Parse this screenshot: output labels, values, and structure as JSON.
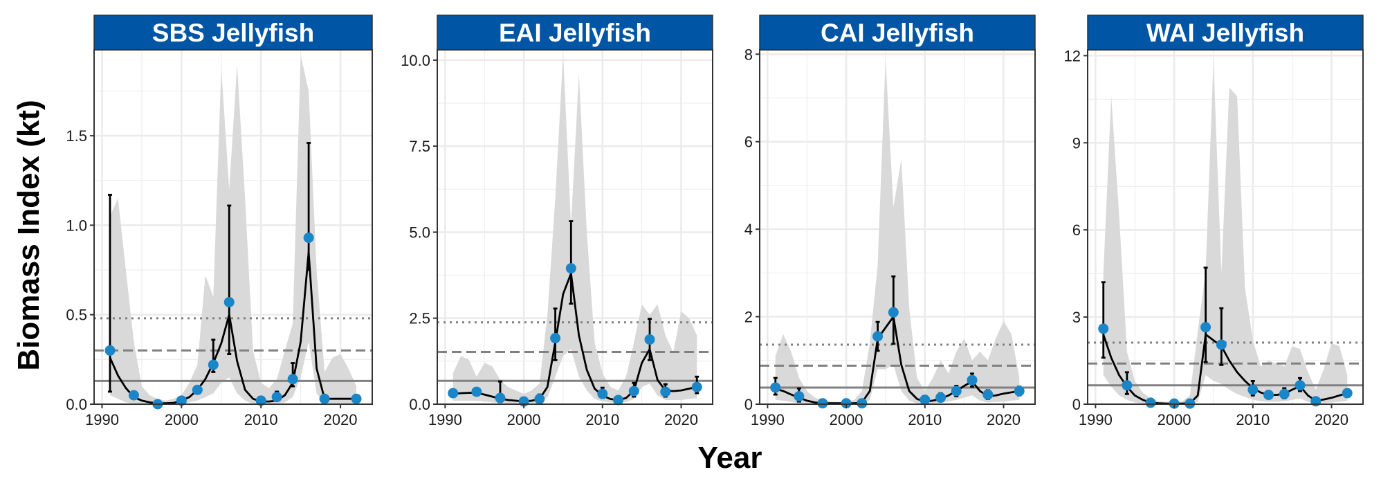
{
  "chart_data": {
    "type": "line",
    "xlabel": "Year",
    "ylabel": "Biomass Index (kt)",
    "grid": true,
    "colors": {
      "strip_bg": "#0155a5",
      "point": "#1a86c8",
      "line": "#000000",
      "ribbon": "#d9d9d9",
      "reference_lines": "#808080",
      "grid": "#ebebeb",
      "panel_border": "#333333"
    },
    "panels": [
      {
        "title": "SBS Jellyfish",
        "xlim": [
          1989,
          2024
        ],
        "ylim": [
          0,
          1.98
        ],
        "x_ticks": [
          1990,
          2000,
          2010,
          2020
        ],
        "y_ticks": [
          0.0,
          0.5,
          1.0,
          1.5
        ],
        "y_tick_labels": [
          "0.0",
          "0.5",
          "1.0",
          "1.5"
        ],
        "reference_lines": {
          "solid": 0.13,
          "dashed": 0.3,
          "dotted": 0.48
        },
        "points": {
          "x": [
            1991,
            1994,
            1997,
            2000,
            2002,
            2004,
            2006,
            2010,
            2012,
            2014,
            2016,
            2018,
            2022
          ],
          "y": [
            0.3,
            0.05,
            0.0,
            0.02,
            0.08,
            0.22,
            0.57,
            0.02,
            0.04,
            0.14,
            0.93,
            0.03,
            0.03
          ],
          "err_low": [
            0.07,
            0.05,
            0.0,
            0.02,
            0.06,
            0.18,
            0.28,
            0.02,
            0.02,
            0.1,
            0.75,
            0.03,
            0.03
          ],
          "err_high": [
            1.17,
            0.05,
            0.0,
            0.02,
            0.1,
            0.36,
            1.11,
            0.02,
            0.07,
            0.23,
            1.46,
            0.03,
            0.03
          ]
        },
        "fit": {
          "x": [
            1991,
            1992,
            1993,
            1994,
            1995,
            1996,
            1997,
            1998,
            1999,
            2000,
            2001,
            2002,
            2003,
            2004,
            2005,
            2006,
            2007,
            2008,
            2009,
            2010,
            2011,
            2012,
            2013,
            2014,
            2015,
            2016,
            2017,
            2018,
            2019,
            2020,
            2021,
            2022
          ],
          "y": [
            0.26,
            0.16,
            0.09,
            0.04,
            0.02,
            0.01,
            0.005,
            0.005,
            0.007,
            0.02,
            0.04,
            0.08,
            0.14,
            0.23,
            0.34,
            0.5,
            0.24,
            0.08,
            0.03,
            0.015,
            0.015,
            0.02,
            0.05,
            0.12,
            0.35,
            0.85,
            0.2,
            0.03,
            0.03,
            0.03,
            0.03,
            0.03
          ],
          "ci_low": [
            0.05,
            0.03,
            0.01,
            0.005,
            0.0,
            0.0,
            0.0,
            0.0,
            0.0,
            0.0,
            0.01,
            0.02,
            0.04,
            0.06,
            0.12,
            0.15,
            0.06,
            0.02,
            0.0,
            0.0,
            0.0,
            0.005,
            0.01,
            0.04,
            0.15,
            0.35,
            0.06,
            0.0,
            0.0,
            0.0,
            0.0,
            0.0
          ],
          "ci_high": [
            1.05,
            1.15,
            0.75,
            0.35,
            0.1,
            0.05,
            0.03,
            0.02,
            0.03,
            0.05,
            0.12,
            0.22,
            0.72,
            0.6,
            1.88,
            1.2,
            1.9,
            1.15,
            0.3,
            0.12,
            0.09,
            0.14,
            0.3,
            0.45,
            1.95,
            1.75,
            0.75,
            0.18,
            0.26,
            0.28,
            0.2,
            0.1
          ]
        }
      },
      {
        "title": "EAI Jellyfish",
        "xlim": [
          1989,
          2024
        ],
        "ylim": [
          0,
          10.3
        ],
        "x_ticks": [
          1990,
          2000,
          2010,
          2020
        ],
        "y_ticks": [
          0.0,
          2.5,
          5.0,
          7.5,
          10.0
        ],
        "y_tick_labels": [
          "0.0",
          "2.5",
          "5.0",
          "7.5",
          "10.0"
        ],
        "reference_lines": {
          "solid": 0.68,
          "dashed": 1.52,
          "dotted": 2.38
        },
        "points": {
          "x": [
            1991,
            1994,
            1997,
            2000,
            2002,
            2004,
            2006,
            2010,
            2012,
            2014,
            2016,
            2018,
            2022
          ],
          "y": [
            0.32,
            0.36,
            0.18,
            0.08,
            0.15,
            1.92,
            3.95,
            0.3,
            0.12,
            0.38,
            1.88,
            0.36,
            0.5
          ],
          "err_low": [
            0.22,
            0.26,
            0.06,
            0.04,
            0.08,
            1.28,
            2.92,
            0.18,
            0.06,
            0.22,
            1.28,
            0.22,
            0.32
          ],
          "err_high": [
            0.42,
            0.46,
            0.66,
            0.14,
            0.28,
            2.78,
            5.32,
            0.48,
            0.2,
            0.62,
            2.48,
            0.58,
            0.8
          ]
        },
        "fit": {
          "x": [
            1991,
            1992,
            1993,
            1994,
            1995,
            1996,
            1997,
            1998,
            1999,
            2000,
            2001,
            2002,
            2003,
            2004,
            2005,
            2006,
            2007,
            2008,
            2009,
            2010,
            2011,
            2012,
            2013,
            2014,
            2015,
            2016,
            2017,
            2018,
            2019,
            2020,
            2021,
            2022
          ],
          "y": [
            0.3,
            0.32,
            0.33,
            0.33,
            0.28,
            0.22,
            0.16,
            0.12,
            0.1,
            0.08,
            0.1,
            0.15,
            0.5,
            1.8,
            3.2,
            3.8,
            2.0,
            1.0,
            0.45,
            0.25,
            0.15,
            0.12,
            0.18,
            0.4,
            1.2,
            1.6,
            0.7,
            0.4,
            0.38,
            0.4,
            0.45,
            0.5
          ],
          "ci_low": [
            0.1,
            0.1,
            0.1,
            0.1,
            0.08,
            0.05,
            0.03,
            0.02,
            0.02,
            0.02,
            0.03,
            0.05,
            0.2,
            0.8,
            1.4,
            1.6,
            0.8,
            0.4,
            0.15,
            0.08,
            0.05,
            0.04,
            0.06,
            0.15,
            0.5,
            0.6,
            0.25,
            0.12,
            0.12,
            0.12,
            0.15,
            0.18
          ],
          "ci_high": [
            0.9,
            1.4,
            1.3,
            0.8,
            1.2,
            1.1,
            0.7,
            0.5,
            0.4,
            0.3,
            0.4,
            0.6,
            2.6,
            6.0,
            10.2,
            5.2,
            9.6,
            5.0,
            1.8,
            0.9,
            0.5,
            0.4,
            0.8,
            1.8,
            2.9,
            2.6,
            2.9,
            2.0,
            1.5,
            2.7,
            2.5,
            2.0
          ]
        }
      },
      {
        "title": "CAI Jellyfish",
        "xlim": [
          1989,
          2024
        ],
        "ylim": [
          0,
          8.1
        ],
        "x_ticks": [
          1990,
          2000,
          2010,
          2020
        ],
        "y_ticks": [
          0,
          2,
          4,
          6,
          8
        ],
        "y_tick_labels": [
          "0",
          "2",
          "4",
          "6",
          "8"
        ],
        "reference_lines": {
          "solid": 0.38,
          "dashed": 0.88,
          "dotted": 1.36
        },
        "points": {
          "x": [
            1991,
            1994,
            1997,
            2000,
            2002,
            2004,
            2006,
            2010,
            2012,
            2014,
            2016,
            2018,
            2022
          ],
          "y": [
            0.38,
            0.18,
            0.02,
            0.02,
            0.02,
            1.55,
            2.1,
            0.1,
            0.15,
            0.3,
            0.55,
            0.22,
            0.3
          ],
          "err_low": [
            0.22,
            0.06,
            0.0,
            0.0,
            0.0,
            1.22,
            1.38,
            0.04,
            0.06,
            0.18,
            0.4,
            0.12,
            0.2
          ],
          "err_high": [
            0.6,
            0.36,
            0.04,
            0.04,
            0.04,
            1.88,
            2.92,
            0.16,
            0.25,
            0.42,
            0.7,
            0.32,
            0.4
          ]
        },
        "fit": {
          "x": [
            1991,
            1992,
            1993,
            1994,
            1995,
            1996,
            1997,
            1998,
            1999,
            2000,
            2001,
            2002,
            2003,
            2004,
            2005,
            2006,
            2007,
            2008,
            2009,
            2010,
            2011,
            2012,
            2013,
            2014,
            2015,
            2016,
            2017,
            2018,
            2019,
            2020,
            2021,
            2022
          ],
          "y": [
            0.35,
            0.3,
            0.22,
            0.15,
            0.08,
            0.04,
            0.02,
            0.02,
            0.02,
            0.02,
            0.02,
            0.04,
            0.3,
            1.5,
            1.75,
            2.0,
            0.9,
            0.3,
            0.12,
            0.06,
            0.08,
            0.12,
            0.2,
            0.3,
            0.42,
            0.52,
            0.3,
            0.18,
            0.2,
            0.24,
            0.27,
            0.3
          ],
          "ci_low": [
            0.1,
            0.08,
            0.05,
            0.02,
            0.01,
            0.0,
            0.0,
            0.0,
            0.0,
            0.0,
            0.0,
            0.0,
            0.1,
            0.8,
            0.8,
            0.9,
            0.3,
            0.08,
            0.02,
            0.01,
            0.02,
            0.03,
            0.06,
            0.1,
            0.15,
            0.2,
            0.08,
            0.04,
            0.05,
            0.06,
            0.08,
            0.1
          ],
          "ci_high": [
            1.1,
            1.6,
            1.2,
            0.6,
            0.3,
            0.15,
            0.08,
            0.06,
            0.05,
            0.06,
            0.1,
            0.3,
            1.4,
            3.2,
            7.9,
            4.5,
            5.6,
            2.2,
            0.6,
            0.3,
            0.6,
            1.0,
            0.7,
            1.2,
            1.5,
            1.0,
            1.2,
            1.0,
            1.5,
            1.9,
            1.6,
            0.6
          ]
        }
      },
      {
        "title": "WAI Jellyfish",
        "xlim": [
          1989,
          2024
        ],
        "ylim": [
          0,
          12.2
        ],
        "x_ticks": [
          1990,
          2000,
          2010,
          2020
        ],
        "y_ticks": [
          0,
          3,
          6,
          9,
          12
        ],
        "y_tick_labels": [
          "0",
          "3",
          "6",
          "9",
          "12"
        ],
        "reference_lines": {
          "solid": 0.65,
          "dashed": 1.4,
          "dotted": 2.12
        },
        "points": {
          "x": [
            1991,
            1994,
            1997,
            2000,
            2002,
            2004,
            2006,
            2010,
            2012,
            2014,
            2016,
            2018,
            2022
          ],
          "y": [
            2.6,
            0.65,
            0.05,
            0.02,
            0.02,
            2.65,
            2.05,
            0.5,
            0.32,
            0.35,
            0.65,
            0.1,
            0.38
          ],
          "err_low": [
            1.6,
            0.35,
            0.02,
            0.0,
            0.0,
            1.45,
            1.35,
            0.3,
            0.2,
            0.2,
            0.45,
            0.05,
            0.25
          ],
          "err_high": [
            4.2,
            1.1,
            0.08,
            0.04,
            0.04,
            4.7,
            3.3,
            0.8,
            0.45,
            0.55,
            0.9,
            0.15,
            0.5
          ]
        },
        "fit": {
          "x": [
            1991,
            1992,
            1993,
            1994,
            1995,
            1996,
            1997,
            1998,
            1999,
            2000,
            2001,
            2002,
            2003,
            2004,
            2005,
            2006,
            2007,
            2008,
            2009,
            2010,
            2011,
            2012,
            2013,
            2014,
            2015,
            2016,
            2017,
            2018,
            2019,
            2020,
            2021,
            2022
          ],
          "y": [
            2.4,
            1.6,
            1.0,
            0.6,
            0.3,
            0.15,
            0.05,
            0.03,
            0.02,
            0.02,
            0.02,
            0.03,
            0.3,
            2.4,
            2.2,
            2.0,
            1.5,
            1.1,
            0.8,
            0.55,
            0.4,
            0.32,
            0.32,
            0.36,
            0.5,
            0.62,
            0.3,
            0.12,
            0.16,
            0.22,
            0.3,
            0.38
          ],
          "ci_low": [
            1.0,
            0.6,
            0.3,
            0.15,
            0.06,
            0.02,
            0.01,
            0.0,
            0.0,
            0.0,
            0.0,
            0.0,
            0.08,
            1.0,
            0.8,
            0.7,
            0.5,
            0.35,
            0.25,
            0.15,
            0.1,
            0.08,
            0.08,
            0.1,
            0.15,
            0.2,
            0.08,
            0.03,
            0.04,
            0.06,
            0.08,
            0.12
          ],
          "ci_high": [
            4.5,
            10.6,
            6.5,
            1.8,
            0.8,
            0.4,
            0.2,
            0.1,
            0.08,
            0.08,
            0.1,
            0.3,
            2.5,
            4.6,
            11.9,
            4.5,
            10.9,
            10.6,
            4.0,
            2.2,
            1.3,
            1.5,
            1.4,
            1.3,
            2.0,
            1.9,
            1.1,
            0.5,
            1.2,
            2.1,
            2.0,
            1.0
          ]
        }
      }
    ]
  }
}
